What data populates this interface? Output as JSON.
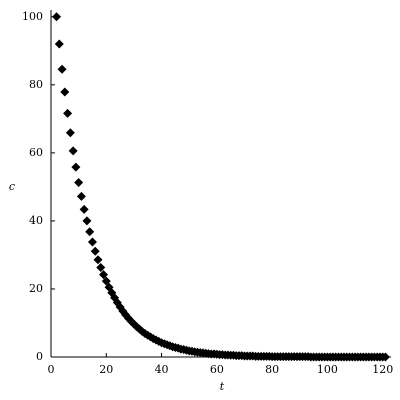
{
  "chart_data": {
    "type": "scatter",
    "xlabel": "t",
    "ylabel": "c",
    "color": "#000000",
    "x": [
      2,
      3,
      4,
      5,
      6,
      7,
      8,
      9,
      10,
      11,
      12,
      13,
      14,
      15,
      16,
      17,
      18,
      19,
      20,
      21,
      22,
      23,
      24,
      25,
      26,
      27,
      28,
      29,
      30,
      31,
      32,
      33,
      34,
      35,
      36,
      37,
      38,
      39,
      40,
      41,
      42,
      43,
      44,
      45,
      46,
      47,
      48,
      49,
      50,
      51,
      52,
      53,
      54,
      55,
      56,
      57,
      58,
      59,
      60,
      61,
      62,
      63,
      64,
      65,
      66,
      67,
      68,
      69,
      70,
      71,
      72,
      73,
      74,
      75,
      76,
      77,
      78,
      79,
      80,
      81,
      82,
      83,
      84,
      85,
      86,
      87,
      88,
      89,
      90,
      91,
      92,
      93,
      94,
      95,
      96,
      97,
      98,
      99,
      100,
      101,
      102,
      103,
      104,
      105,
      106,
      107,
      108,
      109,
      110,
      111,
      112,
      113,
      114,
      115,
      116,
      117,
      118,
      119,
      120,
      121
    ],
    "values": [
      100,
      92,
      84.6,
      77.9,
      71.6,
      65.9,
      60.6,
      55.8,
      51.3,
      47.2,
      43.4,
      40,
      36.8,
      33.8,
      31.1,
      28.6,
      26.3,
      24.2,
      22.3,
      20.5,
      18.9,
      17.4,
      16,
      14.7,
      13.5,
      12.4,
      11.4,
      10.5,
      9.7,
      8.9,
      8.2,
      7.5,
      6.9,
      6.4,
      5.9,
      5.4,
      5,
      4.6,
      4.2,
      3.9,
      3.6,
      3.3,
      3,
      2.8,
      2.6,
      2.3,
      2.2,
      2,
      1.8,
      1.7,
      1.5,
      1.4,
      1.3,
      1.2,
      1.1,
      1,
      0.9,
      0.9,
      0.8,
      0.7,
      0.7,
      0.6,
      0.6,
      0.5,
      0.5,
      0.4,
      0.4,
      0.4,
      0.3,
      0.3,
      0.3,
      0.3,
      0.2,
      0.2,
      0.2,
      0.2,
      0.2,
      0.2,
      0.1,
      0.1,
      0.1,
      0.1,
      0.1,
      0.1,
      0.1,
      0.1,
      0.1,
      0.1,
      0.1,
      0.1,
      0.1,
      0.1,
      0,
      0,
      0,
      0,
      0,
      0,
      0,
      0,
      0,
      0,
      0,
      0,
      0,
      0,
      0,
      0,
      0,
      0,
      0,
      0,
      0,
      0,
      0,
      0,
      0,
      0,
      0,
      0
    ],
    "xlim": [
      0,
      123
    ],
    "ylim": [
      0,
      102
    ],
    "xticks": [
      0,
      20,
      40,
      60,
      80,
      100,
      120
    ],
    "yticks": [
      0,
      20,
      40,
      60,
      80,
      100
    ]
  }
}
